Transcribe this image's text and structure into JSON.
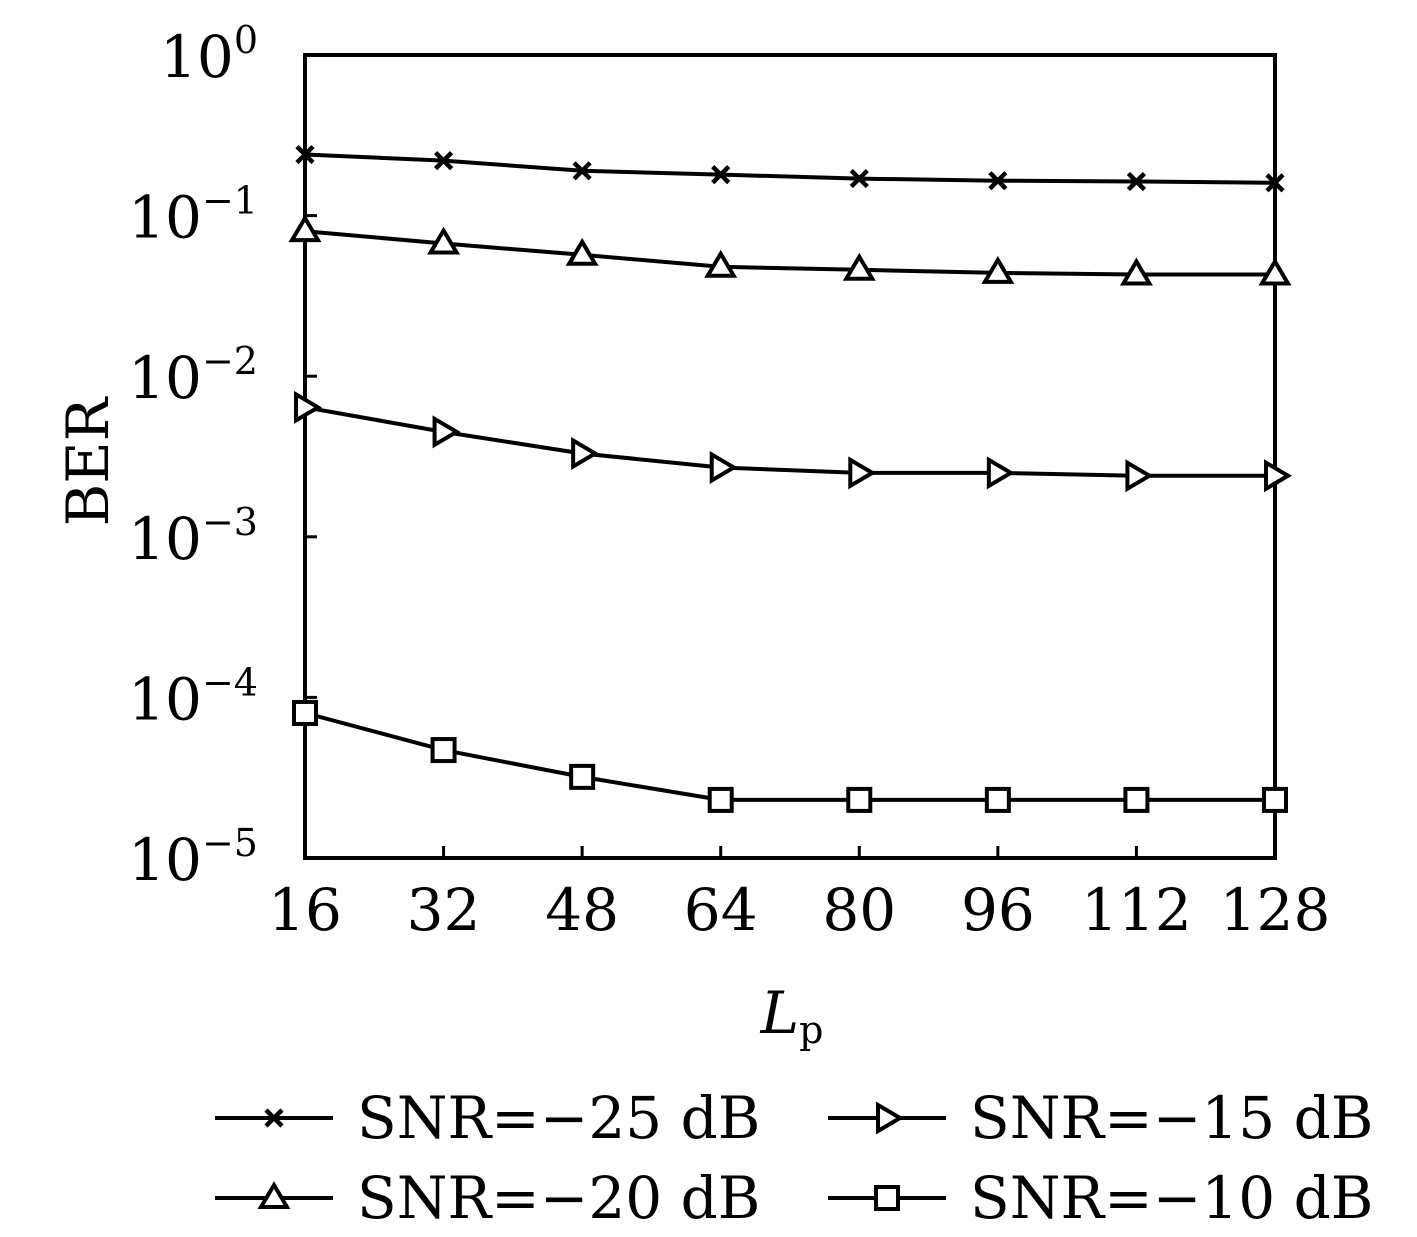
{
  "chart_data": {
    "type": "line",
    "xlabel_main": "L",
    "xlabel_sub": "p",
    "ylabel": "BER",
    "yscale": "log",
    "ylim": [
      1e-05,
      1
    ],
    "x": [
      16,
      32,
      48,
      64,
      80,
      96,
      112,
      128
    ],
    "x_tick_labels": [
      "16",
      "32",
      "48",
      "64",
      "80",
      "96",
      "112",
      "128"
    ],
    "y_ticks": [
      {
        "base": "10",
        "exp": "0",
        "value": 1
      },
      {
        "base": "10",
        "exp": "−1",
        "value": 0.1
      },
      {
        "base": "10",
        "exp": "−2",
        "value": 0.01
      },
      {
        "base": "10",
        "exp": "−3",
        "value": 0.001
      },
      {
        "base": "10",
        "exp": "−4",
        "value": 0.0001
      },
      {
        "base": "10",
        "exp": "−5",
        "value": 1e-05
      }
    ],
    "grid": false,
    "legend_position": "bottom",
    "series": [
      {
        "name": "SNR=−25 dB",
        "marker": "x-mark",
        "values": [
          0.24,
          0.22,
          0.19,
          0.18,
          0.17,
          0.165,
          0.163,
          0.16
        ]
      },
      {
        "name": "SNR=−20 dB",
        "marker": "triangle-up",
        "values": [
          0.08,
          0.067,
          0.057,
          0.048,
          0.046,
          0.044,
          0.043,
          0.043
        ]
      },
      {
        "name": "SNR=−15 dB",
        "marker": "triangle-right",
        "values": [
          0.0064,
          0.0045,
          0.0033,
          0.0027,
          0.0025,
          0.0025,
          0.0024,
          0.0024
        ]
      },
      {
        "name": "SNR=−10 dB",
        "marker": "square",
        "values": [
          8e-05,
          4.7e-05,
          3.2e-05,
          2.3e-05,
          2.3e-05,
          2.3e-05,
          2.3e-05,
          2.3e-05
        ]
      }
    ],
    "line_color": "#000000"
  }
}
